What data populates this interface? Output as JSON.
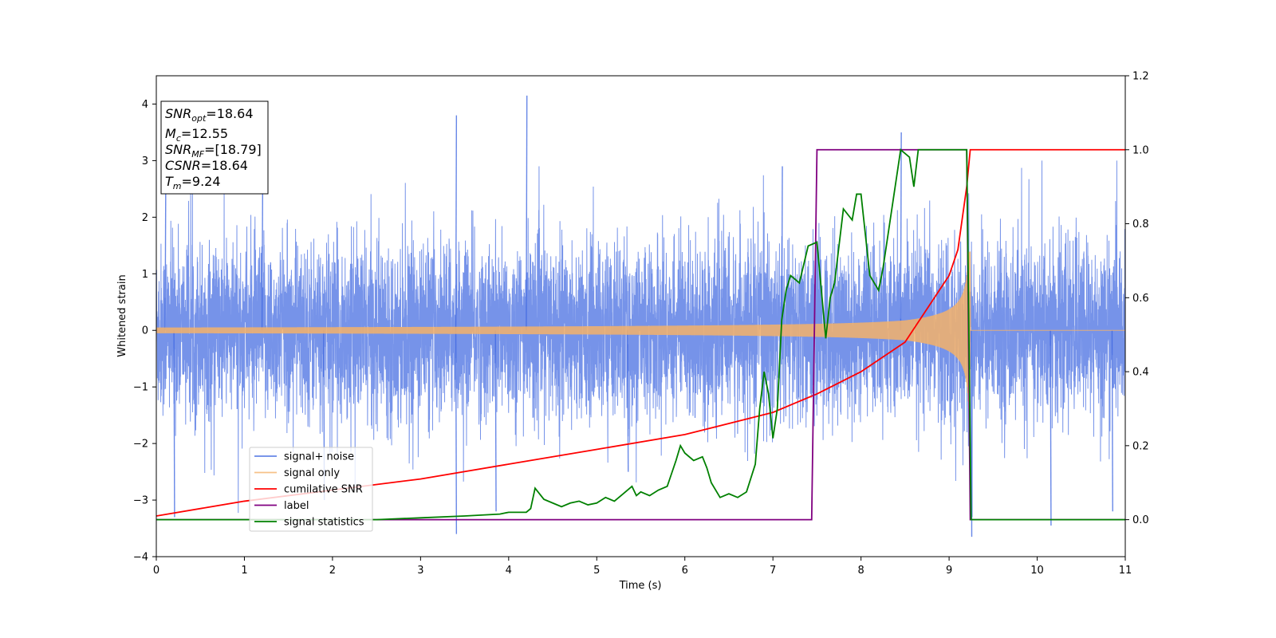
{
  "chart_data": {
    "type": "line",
    "xlabel": "Time (s)",
    "ylabel": "Whitened strain",
    "xlim": [
      0,
      11
    ],
    "ylim_left": [
      -4,
      4.5
    ],
    "ylim_right": [
      -0.1,
      1.2
    ],
    "x_ticks": [
      "0",
      "1",
      "2",
      "3",
      "4",
      "5",
      "6",
      "7",
      "8",
      "9",
      "10",
      "11"
    ],
    "y_ticks_left": [
      "−4",
      "−3",
      "−2",
      "−1",
      "0",
      "1",
      "2",
      "3",
      "4"
    ],
    "y_ticks_right": [
      "0.0",
      "0.2",
      "0.4",
      "0.6",
      "0.8",
      "1.0",
      "1.2"
    ],
    "grid": false,
    "legend_position": "lower-left",
    "annotation": {
      "lines": [
        {
          "base": "SNR",
          "sub": "opt",
          "value": "=18.64"
        },
        {
          "base": "M",
          "sub": "c",
          "value": "=12.55"
        },
        {
          "base": "SNR",
          "sub": "MF",
          "value": "=[18.79]"
        },
        {
          "base": "CSNR",
          "sub": "",
          "value": "=18.64"
        },
        {
          "base": "T",
          "sub": "m",
          "value": "=9.24"
        }
      ]
    },
    "series": [
      {
        "name": "signal+ noise",
        "axis": "left",
        "color": "#4169e1",
        "description_kind": "noise",
        "sigma": 0.75,
        "merger_time": 9.24,
        "peak_values": [
          [
            0.1,
            2.6
          ],
          [
            0.2,
            -3.3
          ],
          [
            1.2,
            2.5
          ],
          [
            1.9,
            -3.0
          ],
          [
            3.4,
            3.8
          ],
          [
            3.4,
            -3.6
          ],
          [
            3.85,
            -3.2
          ],
          [
            4.2,
            4.15
          ],
          [
            5.35,
            -2.5
          ],
          [
            7.1,
            2.9
          ],
          [
            8.45,
            3.5
          ],
          [
            9.25,
            -3.65
          ],
          [
            10.15,
            -3.45
          ],
          [
            10.85,
            -3.2
          ]
        ]
      },
      {
        "name": "signal only",
        "axis": "left",
        "color": "#f4b26a",
        "description_kind": "chirp",
        "merger_time": 9.24,
        "amplitude_start": 0.05,
        "amplitude_peak": 3.0
      },
      {
        "name": "cumilative SNR",
        "axis": "right",
        "color": "#ff0000",
        "x": [
          0,
          1,
          2,
          3,
          4,
          5,
          6,
          7,
          7.5,
          8,
          8.5,
          9,
          9.1,
          9.2,
          9.24,
          9.25,
          11
        ],
        "y": [
          0.01,
          0.05,
          0.08,
          0.11,
          0.15,
          0.19,
          0.23,
          0.29,
          0.34,
          0.4,
          0.48,
          0.66,
          0.73,
          0.9,
          1.0,
          1.0,
          1.0
        ]
      },
      {
        "name": "label",
        "axis": "right",
        "color": "#800080",
        "x": [
          0,
          7.44,
          7.5,
          9.2,
          9.24,
          11
        ],
        "y": [
          0.0,
          0.0,
          1.0,
          1.0,
          0.0,
          0.0
        ]
      },
      {
        "name": "signal statistics",
        "axis": "right",
        "color": "#008000",
        "x": [
          0,
          1,
          2,
          2.5,
          3,
          3.5,
          3.9,
          4.0,
          4.2,
          4.25,
          4.3,
          4.4,
          4.5,
          4.6,
          4.7,
          4.8,
          4.9,
          5.0,
          5.1,
          5.2,
          5.3,
          5.4,
          5.45,
          5.5,
          5.6,
          5.7,
          5.8,
          5.9,
          5.95,
          6.0,
          6.1,
          6.2,
          6.25,
          6.3,
          6.4,
          6.5,
          6.6,
          6.7,
          6.8,
          6.85,
          6.9,
          6.95,
          7.0,
          7.05,
          7.1,
          7.15,
          7.2,
          7.3,
          7.4,
          7.5,
          7.55,
          7.6,
          7.65,
          7.7,
          7.8,
          7.9,
          7.95,
          8.0,
          8.1,
          8.2,
          8.25,
          8.3,
          8.4,
          8.45,
          8.5,
          8.55,
          8.6,
          8.65,
          8.7,
          8.8,
          8.9,
          9.0,
          9.1,
          9.2,
          9.25,
          9.3,
          9.4,
          11
        ],
        "y": [
          0.0,
          0.0,
          0.0,
          0.0,
          0.005,
          0.01,
          0.015,
          0.02,
          0.02,
          0.03,
          0.085,
          0.055,
          0.045,
          0.035,
          0.045,
          0.05,
          0.04,
          0.045,
          0.06,
          0.05,
          0.07,
          0.09,
          0.065,
          0.075,
          0.065,
          0.08,
          0.09,
          0.16,
          0.2,
          0.18,
          0.16,
          0.17,
          0.14,
          0.1,
          0.06,
          0.07,
          0.06,
          0.075,
          0.15,
          0.3,
          0.4,
          0.34,
          0.22,
          0.3,
          0.54,
          0.62,
          0.66,
          0.64,
          0.74,
          0.75,
          0.62,
          0.49,
          0.6,
          0.64,
          0.84,
          0.81,
          0.88,
          0.88,
          0.66,
          0.62,
          0.68,
          0.76,
          0.92,
          1.0,
          0.99,
          0.98,
          0.9,
          1.0,
          1.0,
          1.0,
          1.0,
          1.0,
          1.0,
          1.0,
          0.0,
          0.0,
          0.0,
          0.0
        ]
      }
    ]
  }
}
